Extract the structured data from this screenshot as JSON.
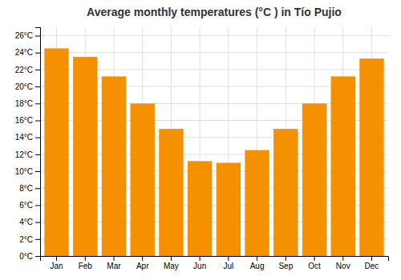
{
  "chart_data": {
    "type": "bar",
    "title": "Average monthly temperatures (°C ) in Tío Pujio",
    "categories": [
      "Jan",
      "Feb",
      "Mar",
      "Apr",
      "May",
      "Jun",
      "Jul",
      "Aug",
      "Sep",
      "Oct",
      "Nov",
      "Dec"
    ],
    "values": [
      24.5,
      23.5,
      21.2,
      18.0,
      15.0,
      11.2,
      11.0,
      12.5,
      15.0,
      18.0,
      21.2,
      23.3
    ],
    "color": "#F59000",
    "ylim": [
      0,
      27
    ],
    "yticks": [
      {
        "value": 0,
        "label": "0°C"
      },
      {
        "value": 2,
        "label": "2°C"
      },
      {
        "value": 4,
        "label": "4°C"
      },
      {
        "value": 6,
        "label": "6°C"
      },
      {
        "value": 8,
        "label": "8°C"
      },
      {
        "value": 10,
        "label": "10°C"
      },
      {
        "value": 12,
        "label": "12°C"
      },
      {
        "value": 14,
        "label": "14°C"
      },
      {
        "value": 16,
        "label": "16°C"
      },
      {
        "value": 18,
        "label": "18°C"
      },
      {
        "value": 20,
        "label": "20°C"
      },
      {
        "value": 22,
        "label": "22°C"
      },
      {
        "value": 24,
        "label": "24°C"
      },
      {
        "value": 26,
        "label": "26°C"
      }
    ],
    "grid": true
  }
}
